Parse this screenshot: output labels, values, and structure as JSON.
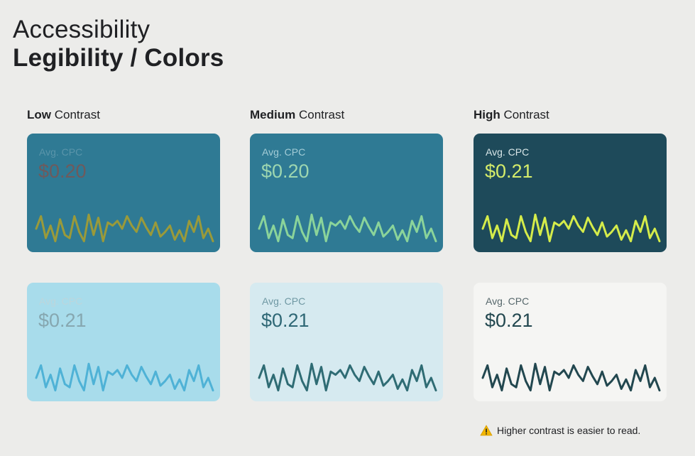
{
  "title": {
    "line1": "Accessibility",
    "line2": "Legibility / Colors"
  },
  "columns": [
    {
      "bold": "Low",
      "rest": " Contrast"
    },
    {
      "bold": "Medium",
      "rest": " Contrast"
    },
    {
      "bold": "High",
      "rest": " Contrast"
    }
  ],
  "cards": [
    {
      "label": "Avg. CPC",
      "value": "$0.20",
      "bg": "#2f7a94",
      "label_color": "#5a95aa",
      "value_color": "#6f5a5c",
      "line_color": "#9a9a3a"
    },
    {
      "label": "Avg. CPC",
      "value": "$0.20",
      "bg": "#2f7a94",
      "label_color": "#a3ccd6",
      "value_color": "#9dd6b0",
      "line_color": "#8bd49a"
    },
    {
      "label": "Avg. CPC",
      "value": "$0.21",
      "bg": "#1e4a5a",
      "label_color": "#d8e6e8",
      "value_color": "#d5ec6a",
      "line_color": "#d5ec4a"
    },
    {
      "label": "Avg. CPC",
      "value": "$0.21",
      "bg": "#a8dceb",
      "label_color": "#bcd6dc",
      "value_color": "#86a7b0",
      "line_color": "#4fb2d6"
    },
    {
      "label": "Avg. CPC",
      "value": "$0.21",
      "bg": "#d6eaf0",
      "label_color": "#6f98a3",
      "value_color": "#2e6775",
      "line_color": "#2f6c74"
    },
    {
      "label": "Avg. CPC",
      "value": "$0.21",
      "bg": "#f5f5f3",
      "label_color": "#56676b",
      "value_color": "#22474f",
      "line_color": "#22474f"
    }
  ],
  "footnote": {
    "icon": "warning-icon",
    "icon_color": "#f2b600",
    "text": "Higher contrast is easier to read."
  }
}
